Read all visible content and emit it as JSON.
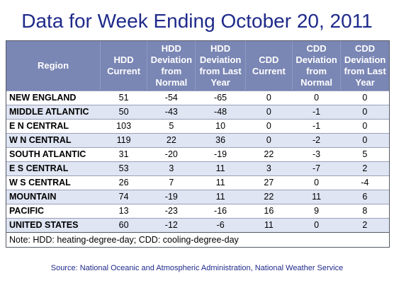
{
  "title": "Data for Week Ending October 20, 2011",
  "table": {
    "headers": [
      "Region",
      "HDD Current",
      "HDD Deviation from Normal",
      "HDD Deviation from Last Year",
      "CDD Current",
      "CDD Deviation from Normal",
      "CDD Deviation from Last Year"
    ],
    "rows": [
      [
        "NEW ENGLAND",
        "51",
        "-54",
        "-65",
        "0",
        "0",
        "0"
      ],
      [
        "MIDDLE ATLANTIC",
        "50",
        "-43",
        "-48",
        "0",
        "-1",
        "0"
      ],
      [
        "E N CENTRAL",
        "103",
        "5",
        "10",
        "0",
        "-1",
        "0"
      ],
      [
        "W N CENTRAL",
        "119",
        "22",
        "36",
        "0",
        "-2",
        "0"
      ],
      [
        "SOUTH ATLANTIC",
        "31",
        "-20",
        "-19",
        "22",
        "-3",
        "5"
      ],
      [
        "E S CENTRAL",
        "53",
        "3",
        "11",
        "3",
        "-7",
        "2"
      ],
      [
        "W S CENTRAL",
        "26",
        "7",
        "11",
        "27",
        "0",
        "-4"
      ],
      [
        "MOUNTAIN",
        "74",
        "-19",
        "11",
        "22",
        "11",
        "6"
      ],
      [
        "PACIFIC",
        "13",
        "-23",
        "-16",
        "16",
        "9",
        "8"
      ],
      [
        "UNITED STATES",
        "60",
        "-12",
        "-6",
        "11",
        "0",
        "2"
      ]
    ],
    "note": "Note: HDD: heating-degree-day; CDD: cooling-degree-day"
  },
  "source": "Source:  National Oceanic and Atmospheric Administration, National Weather Service"
}
